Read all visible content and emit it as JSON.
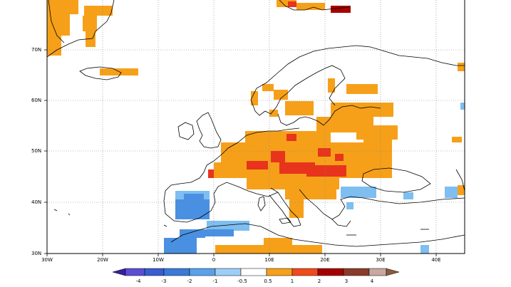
{
  "map": {
    "lat_labels": [
      "70N",
      "60N",
      "50N",
      "40N",
      "30N"
    ],
    "lon_labels": [
      "30W",
      "20W",
      "10W",
      "0",
      "10E",
      "20E",
      "30E",
      "40E"
    ],
    "colors": {
      "very_warm": "#a50000",
      "warmer": "#e8341c",
      "warm": "#f6a01a",
      "cool": "#7ebef0",
      "cooler": "#4a90e2",
      "land_outline": "#000000",
      "grid": "#808080"
    }
  },
  "colorbar": {
    "tick_labels": [
      "-4",
      "-3",
      "-2",
      "-1",
      "-0.5",
      "0.5",
      "1",
      "2",
      "3",
      "4"
    ],
    "colors": [
      "#3a1ea0",
      "#5a4fd4",
      "#3a7ad8",
      "#5aa0ea",
      "#9ccff8",
      "#ffffff",
      "#f6a01a",
      "#f04a1c",
      "#c01a14",
      "#8c0000",
      "#c8a8a0",
      "#8c5a3c"
    ]
  }
}
